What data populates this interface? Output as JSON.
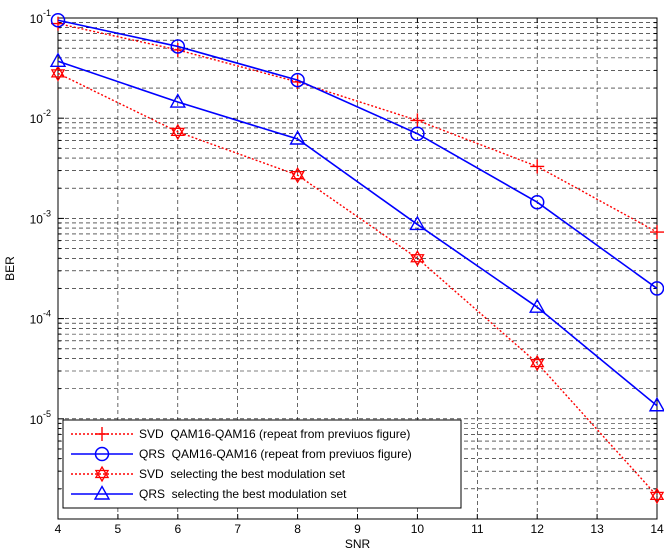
{
  "chart_data": {
    "type": "line",
    "xlabel": "SNR",
    "ylabel": "BER",
    "xlim": [
      4,
      14
    ],
    "ylim": [
      1e-06,
      0.1
    ],
    "yscale": "log",
    "grid": true,
    "legend_position": "bottom-left",
    "x_ticks": [
      "4",
      "5",
      "6",
      "7",
      "8",
      "9",
      "10",
      "11",
      "12",
      "13",
      "14"
    ],
    "y_ticks": [
      {
        "base": "10",
        "exp": "-1"
      },
      {
        "base": "10",
        "exp": "-2"
      },
      {
        "base": "10",
        "exp": "-3"
      },
      {
        "base": "10",
        "exp": "-4"
      },
      {
        "base": "10",
        "exp": "-5"
      }
    ],
    "series": [
      {
        "name": "SVD  QAM16-QAM16 (repeat from previuos figure)",
        "color": "#ff0000",
        "line": "dotted",
        "marker": "plus",
        "x": [
          4,
          6,
          8,
          10,
          12,
          14
        ],
        "y": [
          0.088,
          0.048,
          0.023,
          0.0095,
          0.0033,
          0.00073
        ]
      },
      {
        "name": "QRS  QAM16-QAM16 (repeat from previuos figure)",
        "color": "#0000ff",
        "line": "solid",
        "marker": "circle",
        "x": [
          4,
          6,
          8,
          10,
          12,
          14
        ],
        "y": [
          0.095,
          0.052,
          0.024,
          0.007,
          0.00145,
          0.0002
        ]
      },
      {
        "name": "SVD  selecting the best modulation set",
        "color": "#ff0000",
        "line": "dotted",
        "marker": "hexagram",
        "x": [
          4,
          6,
          8,
          10,
          12,
          14
        ],
        "y": [
          0.028,
          0.0073,
          0.0027,
          0.0004,
          3.6e-05,
          1.7e-06
        ]
      },
      {
        "name": "QRS  selecting the best modulation set",
        "color": "#0000ff",
        "line": "solid",
        "marker": "triangle",
        "x": [
          4,
          6,
          8,
          10,
          12,
          14
        ],
        "y": [
          0.037,
          0.0145,
          0.0062,
          0.00087,
          0.00013,
          1.35e-05
        ]
      }
    ]
  }
}
